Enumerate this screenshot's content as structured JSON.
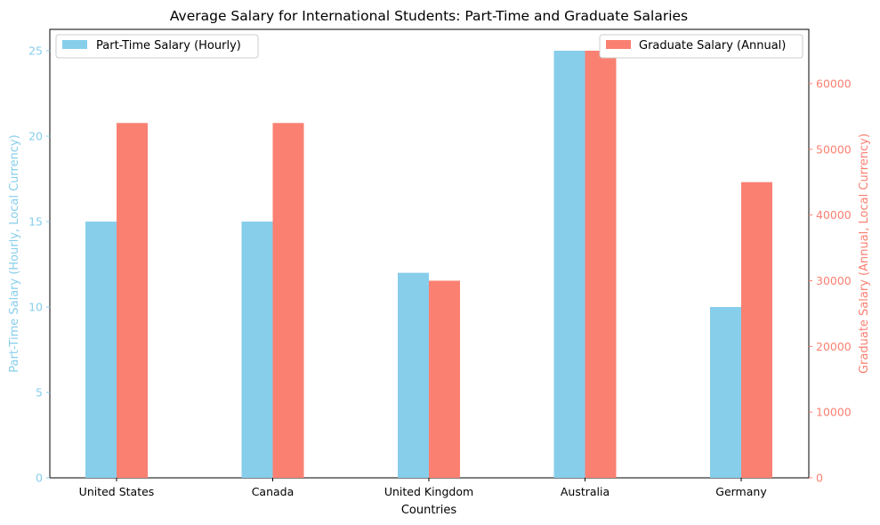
{
  "chart_data": {
    "type": "bar",
    "title": "Average Salary for International Students: Part-Time and Graduate Salaries",
    "xlabel": "Countries",
    "ylabel_left": "Part-Time Salary (Hourly, Local Currency)",
    "ylabel_right": "Graduate Salary (Annual, Local Currency)",
    "categories": [
      "United States",
      "Canada",
      "United Kingdom",
      "Australia",
      "Germany"
    ],
    "ylim_left": [
      0,
      26.25
    ],
    "ylim_right": [
      0,
      68250
    ],
    "yticks_left": [
      0,
      5,
      10,
      15,
      20,
      25
    ],
    "yticks_right": [
      0,
      10000,
      20000,
      30000,
      40000,
      50000,
      60000
    ],
    "series": [
      {
        "name": "Part-Time Salary (Hourly)",
        "axis": "left",
        "color": "#87ceeb",
        "values": [
          15,
          15,
          12,
          25,
          10
        ]
      },
      {
        "name": "Graduate Salary (Annual)",
        "axis": "right",
        "color": "#fa8072",
        "values": [
          54000,
          54000,
          30000,
          65000,
          45000
        ]
      }
    ],
    "legend_left_placement": "upper-left",
    "legend_right_placement": "upper-right",
    "grid": false
  }
}
